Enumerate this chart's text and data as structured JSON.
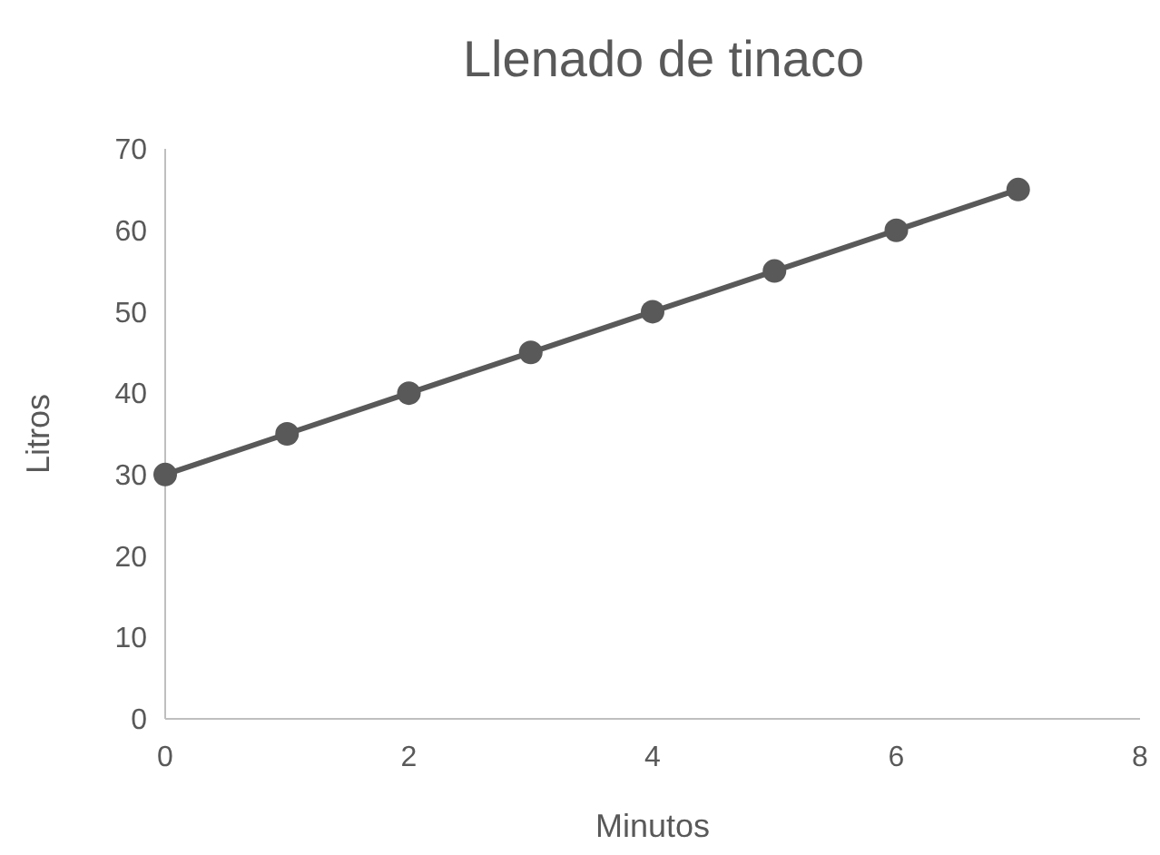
{
  "chart_data": {
    "type": "line",
    "title": "Llenado de tinaco",
    "xlabel": "Minutos",
    "ylabel": "Litros",
    "x": [
      0,
      1,
      2,
      3,
      4,
      5,
      6,
      7
    ],
    "series": [
      {
        "color": "#595959",
        "values": [
          30,
          35,
          40,
          45,
          50,
          55,
          60,
          65
        ]
      }
    ],
    "xlim": [
      0,
      8
    ],
    "xticks": [
      0,
      2,
      4,
      6,
      8
    ],
    "ylim": [
      0,
      70
    ],
    "yticks": [
      0,
      10,
      20,
      30,
      40,
      50,
      60,
      70
    ],
    "grid": false,
    "marker": "circle",
    "line_style": "solid"
  }
}
